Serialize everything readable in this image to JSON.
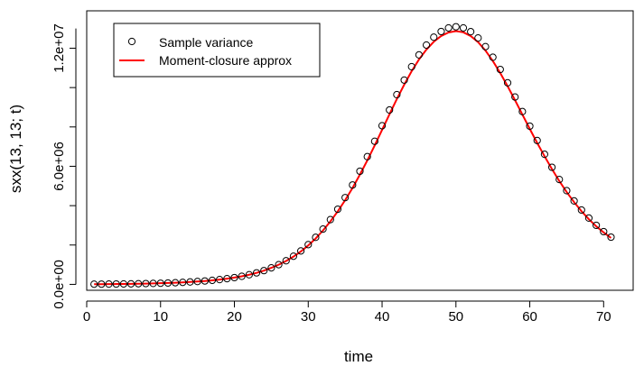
{
  "chart_data": {
    "type": "scatter+line",
    "title": "",
    "xlabel": "time",
    "ylabel": "sxx(13, 13; t)",
    "xlim": [
      0,
      74
    ],
    "ylim": [
      -300000,
      13900000
    ],
    "x_ticks": [
      0,
      10,
      20,
      30,
      40,
      50,
      60,
      70
    ],
    "x_tick_labels": [
      "0",
      "10",
      "20",
      "30",
      "40",
      "50",
      "60",
      "70"
    ],
    "y_ticks": [
      0,
      6000000,
      12000000
    ],
    "y_tick_labels": [
      "0.0e+00",
      "6.0e+06",
      "1.2e+07"
    ],
    "y_minor_ticks": [
      2000000,
      4000000,
      8000000,
      10000000
    ],
    "legend": {
      "position": "top-left",
      "entries": [
        {
          "label": "Sample variance",
          "marker": "open-circle",
          "color": "#000000"
        },
        {
          "label": "Moment-closure approx",
          "marker": "line",
          "color": "#ff0000"
        }
      ]
    },
    "series": [
      {
        "name": "Sample variance",
        "kind": "points",
        "color": "#000000",
        "x": [
          1,
          2,
          3,
          4,
          5,
          6,
          7,
          8,
          9,
          10,
          11,
          12,
          13,
          14,
          15,
          16,
          17,
          18,
          19,
          20,
          21,
          22,
          23,
          24,
          25,
          26,
          27,
          28,
          29,
          30,
          31,
          32,
          33,
          34,
          35,
          36,
          37,
          38,
          39,
          40,
          41,
          42,
          43,
          44,
          45,
          46,
          47,
          48,
          49,
          50,
          51,
          52,
          53,
          54,
          55,
          56,
          57,
          58,
          59,
          60,
          61,
          62,
          63,
          64,
          65,
          66,
          67,
          68,
          69,
          70,
          71
        ],
        "values": [
          10000,
          12000,
          15000,
          18000,
          22000,
          27000,
          33000,
          40000,
          48000,
          58000,
          70000,
          85000,
          102000,
          122000,
          145000,
          172000,
          205000,
          244000,
          290000,
          345000,
          410000,
          490000,
          585000,
          700000,
          840000,
          1000000,
          1200000,
          1430000,
          1700000,
          2020000,
          2390000,
          2810000,
          3290000,
          3820000,
          4410000,
          5050000,
          5750000,
          6490000,
          7270000,
          8060000,
          8860000,
          9640000,
          10380000,
          11060000,
          11660000,
          12160000,
          12560000,
          12850000,
          13030000,
          13090000,
          13030000,
          12840000,
          12520000,
          12080000,
          11540000,
          10920000,
          10240000,
          9520000,
          8780000,
          8040000,
          7310000,
          6610000,
          5950000,
          5330000,
          4760000,
          4240000,
          3780000,
          3370000,
          3000000,
          2680000,
          2400000
        ]
      },
      {
        "name": "Moment-closure approx",
        "kind": "line",
        "color": "#ff0000",
        "x": [
          1,
          2,
          3,
          4,
          5,
          6,
          7,
          8,
          9,
          10,
          11,
          12,
          13,
          14,
          15,
          16,
          17,
          18,
          19,
          20,
          21,
          22,
          23,
          24,
          25,
          26,
          27,
          28,
          29,
          30,
          31,
          32,
          33,
          34,
          35,
          36,
          37,
          38,
          39,
          40,
          41,
          42,
          43,
          44,
          45,
          46,
          47,
          48,
          49,
          50,
          51,
          52,
          53,
          54,
          55,
          56,
          57,
          58,
          59,
          60,
          61,
          62,
          63,
          64,
          65,
          66,
          67,
          68,
          69,
          70,
          71
        ],
        "values": [
          10000,
          12000,
          15000,
          18000,
          22000,
          27000,
          33000,
          40000,
          48000,
          58000,
          70000,
          85000,
          102000,
          122000,
          145000,
          172000,
          205000,
          244000,
          290000,
          345000,
          410000,
          490000,
          585000,
          700000,
          840000,
          1000000,
          1190000,
          1410000,
          1670000,
          1980000,
          2330000,
          2740000,
          3200000,
          3710000,
          4280000,
          4900000,
          5580000,
          6300000,
          7060000,
          7850000,
          8640000,
          9420000,
          10150000,
          10830000,
          11430000,
          11930000,
          12330000,
          12620000,
          12800000,
          12870000,
          12810000,
          12620000,
          12310000,
          11880000,
          11350000,
          10740000,
          10070000,
          9360000,
          8630000,
          7900000,
          7190000,
          6510000,
          5860000,
          5250000,
          4690000,
          4180000,
          3720000,
          3310000,
          2950000,
          2640000,
          2360000
        ]
      }
    ]
  }
}
